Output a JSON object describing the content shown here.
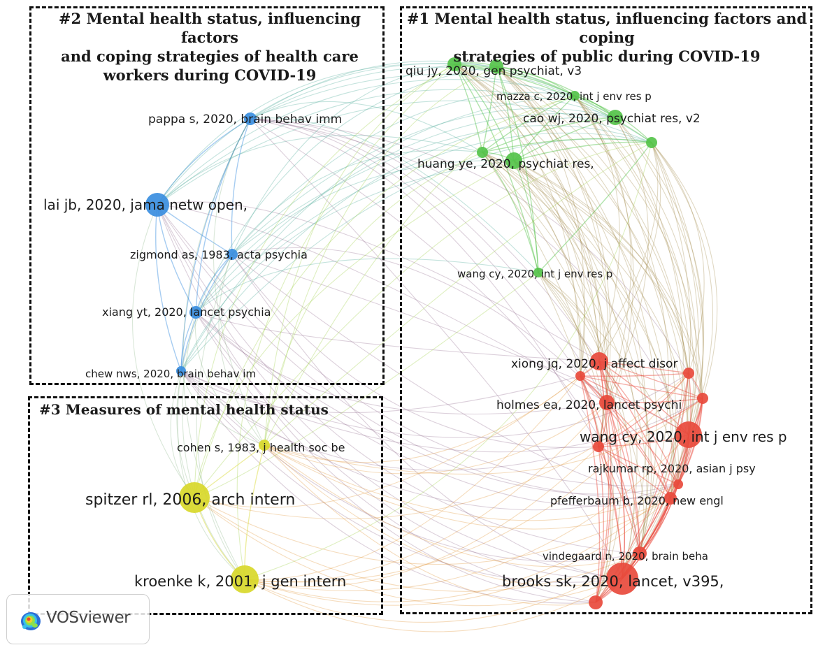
{
  "clusters": [
    {
      "id": "c1",
      "title": "#1 Mental health status, influencing factors and coping strategies of public during COVID-19",
      "color": "#e84a3c"
    },
    {
      "id": "c2",
      "title": "#2 Mental health status, influencing factors and coping strategies of health care workers during COVID-19",
      "color": "#3a8ee0"
    },
    {
      "id": "c3",
      "title": "#3 Measures of mental health status",
      "color": "#d8d82a"
    }
  ],
  "cluster_title_lines": {
    "c1": [
      "#1 Mental health status, influencing factors and coping",
      "strategies of public during COVID-19"
    ],
    "c2": [
      "#2 Mental health status, influencing factors",
      "and coping strategies of health care",
      "workers during COVID-19"
    ],
    "c3": [
      "#3 Measures of mental health status"
    ]
  },
  "nodes": [
    {
      "id": "n1",
      "label": "lai jb, 2020, jama netw open,",
      "cluster": "c2",
      "weight": 5
    },
    {
      "id": "n2",
      "label": "pappa s, 2020, brain behav imm",
      "cluster": "c2",
      "weight": 3
    },
    {
      "id": "n3",
      "label": "zigmond as, 1983, acta psychia",
      "cluster": "c2",
      "weight": 2
    },
    {
      "id": "n4",
      "label": "xiang yt, 2020, lancet psychia",
      "cluster": "c2",
      "weight": 3
    },
    {
      "id": "n5",
      "label": "chew nws, 2020, brain behav im",
      "cluster": "c2",
      "weight": 2
    },
    {
      "id": "n6",
      "label": "qiu jy, 2020, gen psychiat, v3",
      "cluster": "c1g",
      "weight": 3
    },
    {
      "id": "n7",
      "label": "mazza c, 2020, int j env res p",
      "cluster": "c1g",
      "weight": 2
    },
    {
      "id": "n8",
      "label": "cao wj, 2020, psychiat res, v2",
      "cluster": "c1g",
      "weight": 3
    },
    {
      "id": "n9",
      "label": "huang ye, 2020, psychiat res,",
      "cluster": "c1g",
      "weight": 3
    },
    {
      "id": "n10",
      "label": "wang cy, 2020, int j env res p",
      "cluster": "c1g",
      "weight": 2
    },
    {
      "id": "n11",
      "label": "xiong jq, 2020, j affect disor",
      "cluster": "c1",
      "weight": 3
    },
    {
      "id": "n12",
      "label": "holmes ea, 2020, lancet psychi",
      "cluster": "c1",
      "weight": 3
    },
    {
      "id": "n13",
      "label": "wang cy, 2020, int j env res p",
      "cluster": "c1",
      "weight": 5
    },
    {
      "id": "n14",
      "label": "rajkumar rp, 2020, asian j psy",
      "cluster": "c1",
      "weight": 2
    },
    {
      "id": "n15",
      "label": "pfefferbaum b, 2020, new engl",
      "cluster": "c1",
      "weight": 2
    },
    {
      "id": "n16",
      "label": "vindegaard n, 2020, brain beha",
      "cluster": "c1",
      "weight": 2
    },
    {
      "id": "n17",
      "label": "brooks sk, 2020, lancet, v395,",
      "cluster": "c1",
      "weight": 6
    },
    {
      "id": "n18",
      "label": "cohen s, 1983, j health soc be",
      "cluster": "c3",
      "weight": 2
    },
    {
      "id": "n19",
      "label": "spitzer rl, 2006, arch intern",
      "cluster": "c3",
      "weight": 6
    },
    {
      "id": "n20",
      "label": "kroenke k, 2001, j gen intern",
      "cluster": "c3",
      "weight": 5
    }
  ],
  "palette": {
    "red": "#e84a3c",
    "green": "#55c34a",
    "blue": "#3a8ee0",
    "yellow": "#d8d82a"
  },
  "badge": {
    "brand": "VOSviewer",
    "icon": "vosviewer-logo-icon"
  }
}
